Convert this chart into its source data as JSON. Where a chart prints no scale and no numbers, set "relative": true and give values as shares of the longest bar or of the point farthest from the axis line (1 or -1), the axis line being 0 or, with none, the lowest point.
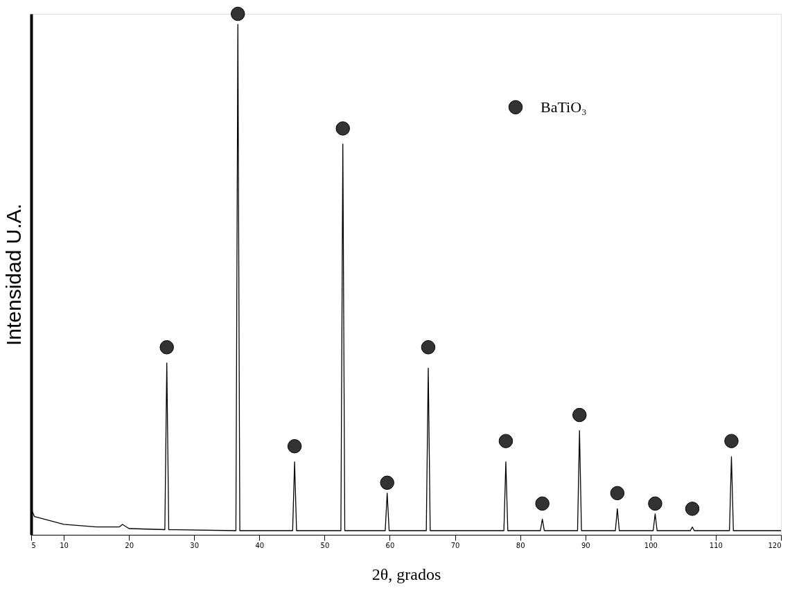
{
  "chart_data": {
    "type": "line",
    "relative": true,
    "xlabel": "2θ, grados",
    "ylabel": "Intensidad U.A.",
    "xlim": [
      5,
      120
    ],
    "xticks": [
      5,
      10,
      20,
      30,
      40,
      50,
      60,
      70,
      80,
      90,
      100,
      110,
      120
    ],
    "tick_labels": "x",
    "grid": false,
    "legend": "top right",
    "series": [
      {
        "type": "line",
        "color": "#000000",
        "line_style": "solid",
        "x": [
          5,
          5.5,
          7,
          10,
          15,
          18.5,
          19,
          20,
          25.5,
          25.8,
          26.1,
          36.4,
          36.7,
          37.0,
          45.1,
          45.4,
          45.7,
          52.5,
          52.8,
          53.1,
          59.3,
          59.6,
          59.9,
          65.6,
          65.9,
          66.2,
          77.5,
          77.8,
          78.1,
          83.1,
          83.4,
          83.7,
          88.8,
          89.1,
          89.4,
          94.6,
          94.9,
          95.2,
          100.4,
          100.7,
          101.0,
          106.1,
          106.4,
          106.7,
          112.1,
          112.4,
          112.7,
          120
        ],
        "values": [
          0.05,
          0.035,
          0.03,
          0.02,
          0.015,
          0.015,
          0.02,
          0.012,
          0.01,
          0.33,
          0.01,
          0.008,
          0.98,
          0.008,
          0.008,
          0.14,
          0.008,
          0.008,
          0.75,
          0.008,
          0.008,
          0.08,
          0.008,
          0.008,
          0.32,
          0.008,
          0.008,
          0.14,
          0.008,
          0.008,
          0.03,
          0.008,
          0.008,
          0.2,
          0.008,
          0.008,
          0.05,
          0.008,
          0.008,
          0.04,
          0.008,
          0.008,
          0.015,
          0.008,
          0.008,
          0.15,
          0.008,
          0.008
        ]
      },
      {
        "type": "scatter",
        "name": "BaTiO₃",
        "color": "#333333",
        "marker": "circle",
        "x": [
          25.8,
          36.7,
          45.4,
          52.8,
          59.6,
          65.9,
          77.8,
          83.4,
          89.1,
          94.9,
          100.7,
          106.4,
          112.4
        ],
        "values": [
          0.36,
          1.0,
          0.17,
          0.78,
          0.1,
          0.36,
          0.18,
          0.06,
          0.23,
          0.08,
          0.06,
          0.05,
          0.18
        ]
      }
    ]
  }
}
